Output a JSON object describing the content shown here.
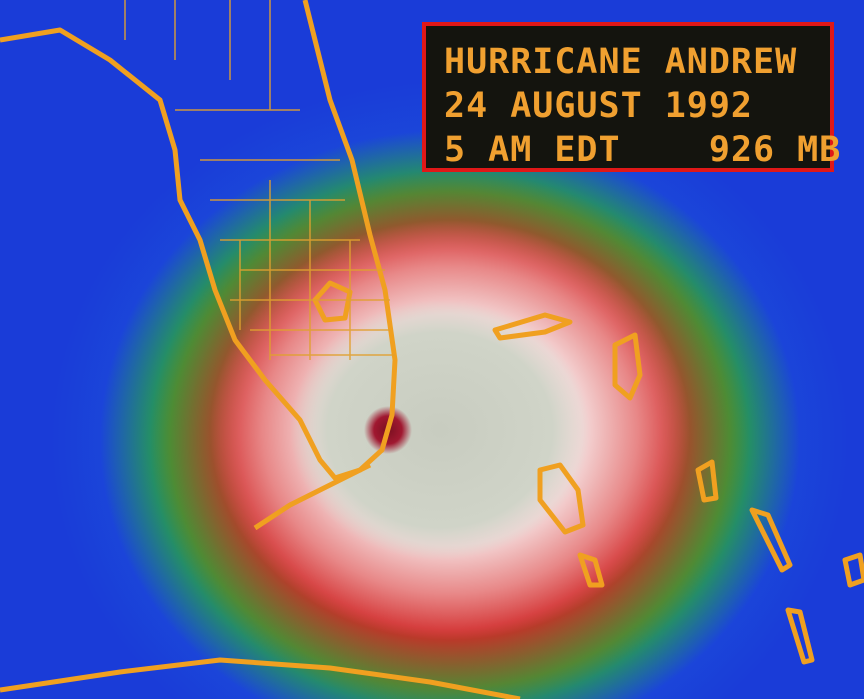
{
  "overlay": {
    "title": "HURRICANE ANDREW",
    "date": "24 AUGUST 1992",
    "time": "5 AM EDT",
    "pressure": "926 MB"
  },
  "colors": {
    "text": "#f0a030",
    "box_border": "#e01818",
    "map_outline": "#f0a020"
  }
}
